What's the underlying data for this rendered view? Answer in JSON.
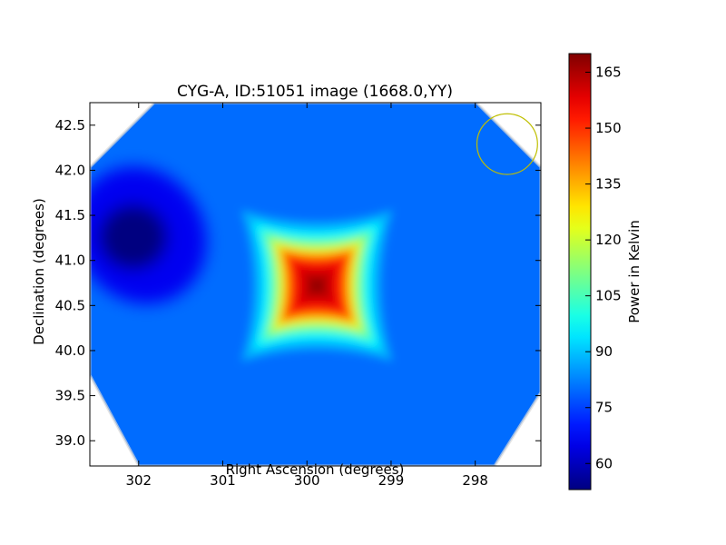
{
  "chart_data": {
    "type": "heatmap",
    "title": "CYG-A, ID:51051 image (1668.0,YY)",
    "xlabel": "Right Ascension (degrees)",
    "ylabel": "Declination (degrees)",
    "xlim": [
      302.58,
      297.22
    ],
    "ylim": [
      38.72,
      42.75
    ],
    "x_inverted": true,
    "x_ticks": [
      302,
      301,
      300,
      299,
      298
    ],
    "x_tick_labels": [
      "302",
      "301",
      "300",
      "299",
      "298"
    ],
    "y_ticks": [
      39.0,
      39.5,
      40.0,
      40.5,
      41.0,
      41.5,
      42.0,
      42.5
    ],
    "y_tick_labels": [
      "39.0",
      "39.5",
      "40.0",
      "40.5",
      "41.0",
      "41.5",
      "42.0",
      "42.5"
    ],
    "grid": false,
    "colormap": "jet",
    "colorbar": {
      "label": "Power in Kelvin",
      "range": [
        53,
        170
      ],
      "ticks": [
        60,
        75,
        90,
        105,
        120,
        135,
        150,
        165
      ],
      "tick_labels": [
        "60",
        "75",
        "90",
        "105",
        "120",
        "135",
        "150",
        "165"
      ]
    },
    "background_level_K": 80,
    "sources": [
      {
        "ra": 299.88,
        "dec": 40.72,
        "peak_K": 168,
        "kind": "bright source (Cygnus A)"
      },
      {
        "ra": 301.98,
        "dec": 41.28,
        "peak_K": 53,
        "kind": "low-power depression"
      }
    ],
    "beam_marker": {
      "ra": 297.62,
      "dec": 42.29,
      "radius_deg": 0.36,
      "color": "#bfbf00"
    },
    "valid_region": "octagonal footprint with white corners"
  }
}
